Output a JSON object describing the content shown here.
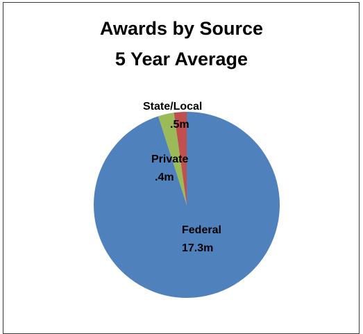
{
  "chart_data": {
    "type": "pie",
    "title": [
      "Awards by Source",
      "5 Year Average"
    ],
    "series": [
      {
        "name": "Federal",
        "value": 17.3,
        "value_label": "17.3m",
        "color": "#4F81BD"
      },
      {
        "name": "State/Local",
        "value": 0.5,
        "value_label": ".5m",
        "color": "#9BBB59"
      },
      {
        "name": "Private",
        "value": 0.4,
        "value_label": ".4m",
        "color": "#C0504D"
      }
    ],
    "legend": "none"
  }
}
